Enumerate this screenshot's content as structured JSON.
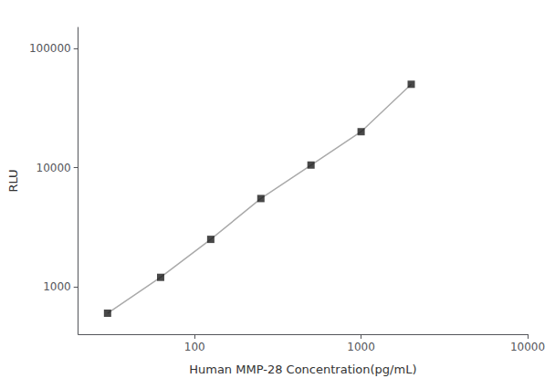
{
  "chart_data": {
    "type": "line",
    "xlabel": "Human MMP-28 Concentration(pg/mL)",
    "ylabel": "RLU",
    "x": [
      30,
      62.5,
      125,
      250,
      500,
      1000,
      2000
    ],
    "series": [
      {
        "type": "line",
        "color": "#aaaaaa",
        "values": [
          600,
          1200,
          2500,
          5500,
          10500,
          20000,
          50000
        ]
      },
      {
        "type": "scatter",
        "color": "#1a1a1a",
        "marker": "square",
        "values": [
          600,
          1200,
          2500,
          5500,
          10500,
          20000,
          50000
        ]
      }
    ],
    "log": true,
    "xlim": [
      20,
      10000
    ],
    "ylim": [
      400,
      150000
    ],
    "xticks": [
      100,
      1000,
      10000
    ],
    "yticks": [
      1000,
      10000,
      100000
    ],
    "grid": false
  }
}
